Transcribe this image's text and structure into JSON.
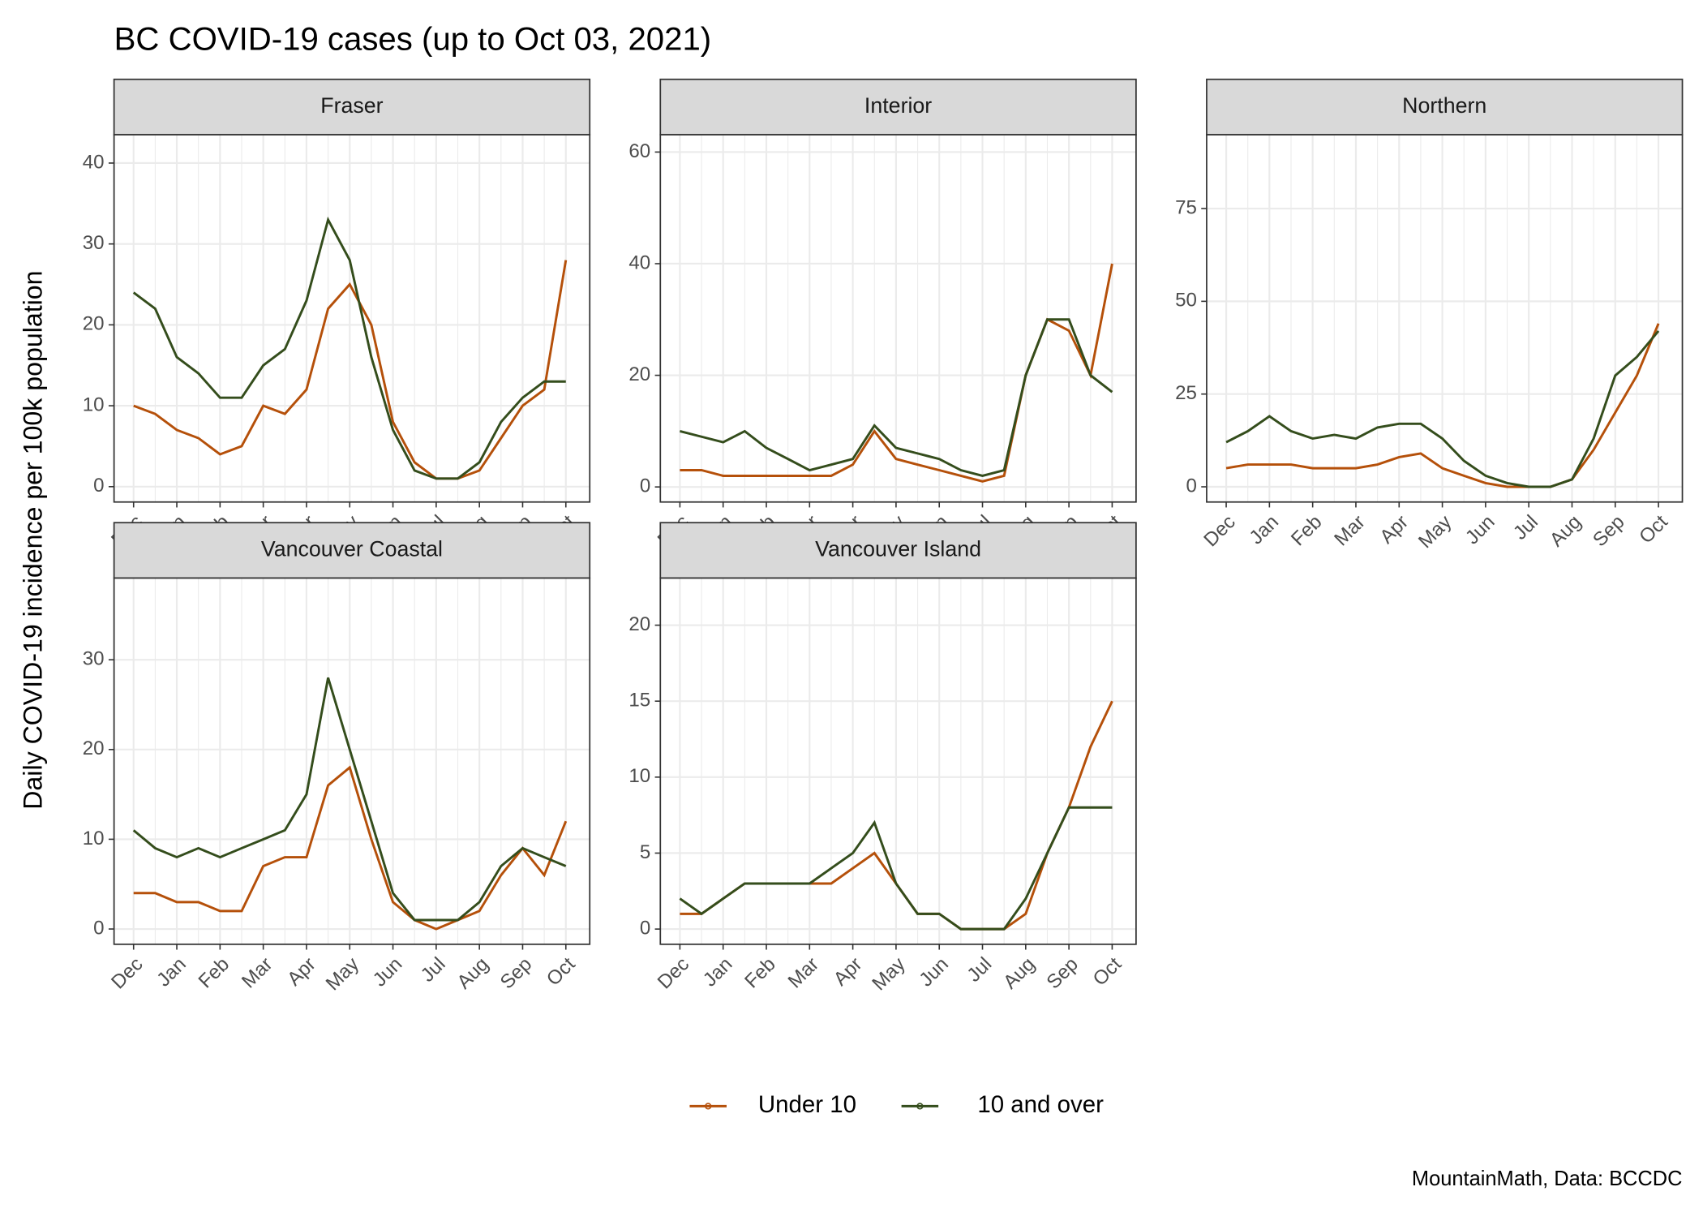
{
  "title": "BC COVID-19 cases (up to Oct 03, 2021)",
  "y_label": "Daily COVID-19 incidence per 100k population",
  "caption": "MountainMath, Data: BCCDC",
  "chart_data": [
    {
      "type": "line",
      "title": "Fraser",
      "categories": [
        "Dec",
        null,
        "Jan",
        null,
        "Feb",
        null,
        "Mar",
        null,
        "Apr",
        null,
        "May",
        null,
        "Jun",
        null,
        "Jul",
        null,
        "Aug",
        null,
        "Sep",
        null,
        "Oct"
      ],
      "series": [
        {
          "name": "Under 10",
          "color": "#b5500a",
          "values": [
            10,
            9,
            7,
            6,
            4,
            5,
            10,
            9,
            12,
            22,
            25,
            20,
            8,
            3,
            1,
            1,
            2,
            6,
            10,
            12,
            28
          ]
        },
        {
          "name": "10 and over",
          "color": "#344d1c",
          "values": [
            24,
            22,
            16,
            14,
            11,
            11,
            15,
            17,
            23,
            33,
            28,
            16,
            7,
            2,
            1,
            1,
            3,
            8,
            11,
            13,
            13
          ]
        }
      ],
      "ylim": [
        -1.9,
        43.5
      ],
      "yticks": [
        0,
        10,
        20,
        30,
        40
      ],
      "grid": true
    },
    {
      "type": "line",
      "title": "Interior",
      "categories": [
        "Dec",
        null,
        "Jan",
        null,
        "Feb",
        null,
        "Mar",
        null,
        "Apr",
        null,
        "May",
        null,
        "Jun",
        null,
        "Jul",
        null,
        "Aug",
        null,
        "Sep",
        null,
        "Oct"
      ],
      "series": [
        {
          "name": "Under 10",
          "color": "#b5500a",
          "values": [
            3,
            3,
            2,
            2,
            2,
            2,
            2,
            2,
            4,
            10,
            5,
            4,
            3,
            2,
            1,
            2,
            20,
            30,
            28,
            20,
            40
          ]
        },
        {
          "name": "10 and over",
          "color": "#344d1c",
          "values": [
            10,
            9,
            8,
            10,
            7,
            5,
            3,
            4,
            5,
            11,
            7,
            6,
            5,
            3,
            2,
            3,
            20,
            30,
            30,
            20,
            17
          ]
        }
      ],
      "ylim": [
        -2.7,
        63.1
      ],
      "yticks": [
        0,
        20,
        40,
        60
      ],
      "grid": true
    },
    {
      "type": "line",
      "title": "Northern",
      "categories": [
        "Dec",
        null,
        "Jan",
        null,
        "Feb",
        null,
        "Mar",
        null,
        "Apr",
        null,
        "May",
        null,
        "Jun",
        null,
        "Jul",
        null,
        "Aug",
        null,
        "Sep",
        null,
        "Oct"
      ],
      "series": [
        {
          "name": "Under 10",
          "color": "#b5500a",
          "values": [
            5,
            6,
            6,
            6,
            5,
            5,
            5,
            6,
            8,
            9,
            5,
            3,
            1,
            0,
            0,
            0,
            2,
            10,
            20,
            30,
            44
          ]
        },
        {
          "name": "10 and over",
          "color": "#344d1c",
          "values": [
            12,
            15,
            19,
            15,
            13,
            14,
            13,
            16,
            17,
            17,
            13,
            7,
            3,
            1,
            0,
            0,
            2,
            13,
            30,
            35,
            42
          ]
        }
      ],
      "ylim": [
        -4.1,
        94.9
      ],
      "yticks": [
        0,
        25,
        50,
        75
      ],
      "grid": true
    },
    {
      "type": "line",
      "title": "Vancouver Coastal",
      "categories": [
        "Dec",
        null,
        "Jan",
        null,
        "Feb",
        null,
        "Mar",
        null,
        "Apr",
        null,
        "May",
        null,
        "Jun",
        null,
        "Jul",
        null,
        "Aug",
        null,
        "Sep",
        null,
        "Oct"
      ],
      "series": [
        {
          "name": "Under 10",
          "color": "#b5500a",
          "values": [
            4,
            4,
            3,
            3,
            2,
            2,
            7,
            8,
            8,
            16,
            18,
            10,
            3,
            1,
            0,
            1,
            2,
            6,
            9,
            6,
            12
          ]
        },
        {
          "name": "10 and over",
          "color": "#344d1c",
          "values": [
            11,
            9,
            8,
            9,
            8,
            9,
            10,
            11,
            15,
            28,
            20,
            12,
            4,
            1,
            1,
            1,
            3,
            7,
            9,
            8,
            7
          ]
        }
      ],
      "ylim": [
        -1.7,
        39.1
      ],
      "yticks": [
        0,
        10,
        20,
        30
      ],
      "grid": true
    },
    {
      "type": "line",
      "title": "Vancouver Island",
      "categories": [
        "Dec",
        null,
        "Jan",
        null,
        "Feb",
        null,
        "Mar",
        null,
        "Apr",
        null,
        "May",
        null,
        "Jun",
        null,
        "Jul",
        null,
        "Aug",
        null,
        "Sep",
        null,
        "Oct"
      ],
      "series": [
        {
          "name": "Under 10",
          "color": "#b5500a",
          "values": [
            1,
            1,
            2,
            3,
            3,
            3,
            3,
            3,
            4,
            5,
            3,
            1,
            1,
            0,
            0,
            0,
            1,
            5,
            8,
            12,
            15
          ]
        },
        {
          "name": "10 and over",
          "color": "#344d1c",
          "values": [
            2,
            1,
            2,
            3,
            3,
            3,
            3,
            4,
            5,
            7,
            3,
            1,
            1,
            0,
            0,
            0,
            2,
            5,
            8,
            8,
            8
          ]
        }
      ],
      "ylim": [
        -1.0,
        23.1
      ],
      "yticks": [
        0,
        5,
        10,
        15,
        20
      ],
      "grid": true
    }
  ]
}
